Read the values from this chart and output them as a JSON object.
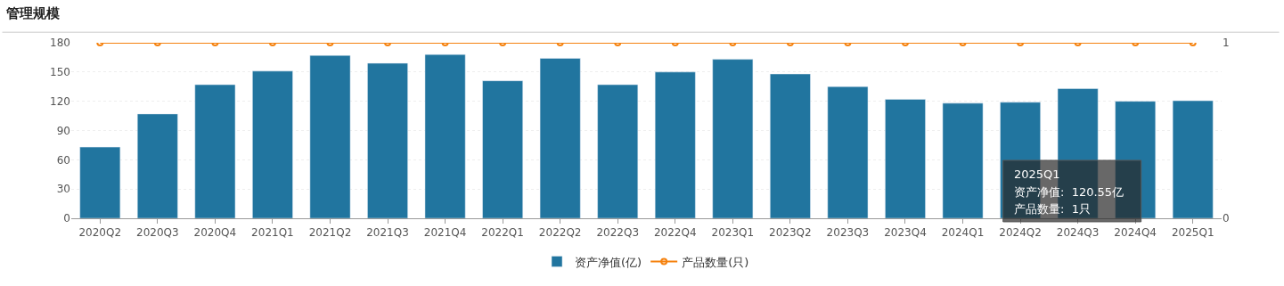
{
  "chart_data": {
    "type": "bar",
    "title": "管理规模",
    "categories": [
      "2020Q2",
      "2020Q3",
      "2020Q4",
      "2021Q1",
      "2021Q2",
      "2021Q3",
      "2021Q4",
      "2022Q1",
      "2022Q2",
      "2022Q3",
      "2022Q4",
      "2023Q1",
      "2023Q2",
      "2023Q3",
      "2023Q4",
      "2024Q1",
      "2024Q2",
      "2024Q3",
      "2024Q4",
      "2025Q1"
    ],
    "series": [
      {
        "name": "资产净值(亿)",
        "color": "#21759f",
        "values": [
          73,
          107,
          137,
          151,
          167,
          159,
          168,
          141,
          164,
          137,
          150,
          163,
          148,
          135,
          122,
          118,
          119,
          133,
          120,
          120.55
        ]
      },
      {
        "name": "产品数量(只)",
        "type": "line",
        "axis": "y2",
        "color": "#f5820f",
        "marker": "circle",
        "values": [
          1,
          1,
          1,
          1,
          1,
          1,
          1,
          1,
          1,
          1,
          1,
          1,
          1,
          1,
          1,
          1,
          1,
          1,
          1,
          1
        ]
      }
    ],
    "ylim": [
      0,
      180
    ],
    "yticks": [
      0,
      30,
      60,
      90,
      120,
      150,
      180
    ],
    "y2lim": [
      0,
      1
    ],
    "y2ticks": [
      0,
      1
    ],
    "grid": "y",
    "legend": "bottom",
    "annotations": [
      "2025Q1",
      "资产净值:  120.55亿",
      "产品数量:  1只"
    ]
  }
}
